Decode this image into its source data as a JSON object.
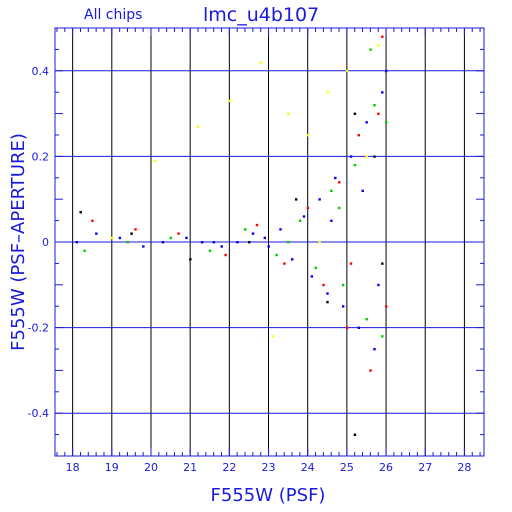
{
  "chart_data": {
    "type": "scatter",
    "title": "lmc_u4b107",
    "subtitle": "All chips",
    "xlabel": "F555W (PSF)",
    "ylabel": "F555W (PSF–APERTURE)",
    "xlim": [
      17.55,
      28.5
    ],
    "ylim": [
      -0.5,
      0.5
    ],
    "x_ticks": [
      18,
      19,
      20,
      21,
      22,
      23,
      24,
      25,
      26,
      27,
      28
    ],
    "x_tick_labels": [
      "18",
      "19",
      "20",
      "21",
      "22",
      "23",
      "24",
      "25",
      "26",
      "27",
      "28"
    ],
    "y_ticks": [
      -0.4,
      -0.2,
      0,
      0.2,
      0.4
    ],
    "y_tick_labels": [
      "-0.4",
      "-0.2",
      "0",
      "0.2",
      "0.4"
    ],
    "grid": true,
    "colors": {
      "axes": "#1a1adc",
      "frame": "#000000",
      "chip_series": [
        "#0000ff",
        "#00cc00",
        "#ff0000",
        "#ffff00",
        "#000000"
      ]
    },
    "series": [
      {
        "color": "#0000ff",
        "points": [
          [
            18.1,
            0.0
          ],
          [
            18.6,
            0.02
          ],
          [
            19.2,
            0.01
          ],
          [
            19.8,
            -0.01
          ],
          [
            20.3,
            0.0
          ],
          [
            20.9,
            0.01
          ],
          [
            21.3,
            0.0
          ],
          [
            21.8,
            -0.01
          ],
          [
            22.2,
            0.0
          ],
          [
            22.6,
            0.02
          ],
          [
            23.0,
            -0.01
          ],
          [
            23.3,
            0.03
          ],
          [
            23.6,
            -0.04
          ],
          [
            23.9,
            0.06
          ],
          [
            24.1,
            -0.08
          ],
          [
            24.3,
            0.1
          ],
          [
            24.5,
            -0.12
          ],
          [
            24.7,
            0.15
          ],
          [
            24.9,
            -0.15
          ],
          [
            25.1,
            0.2
          ],
          [
            25.3,
            -0.2
          ],
          [
            25.5,
            0.28
          ],
          [
            25.7,
            -0.25
          ],
          [
            25.9,
            0.35
          ],
          [
            26.0,
            0.4
          ],
          [
            25.8,
            -0.1
          ],
          [
            24.6,
            0.05
          ],
          [
            22.9,
            0.01
          ],
          [
            21.6,
            0.0
          ],
          [
            25.4,
            0.12
          ]
        ]
      },
      {
        "color": "#00cc00",
        "points": [
          [
            18.3,
            -0.02
          ],
          [
            19.4,
            0.0
          ],
          [
            20.5,
            0.01
          ],
          [
            21.5,
            -0.02
          ],
          [
            22.4,
            0.03
          ],
          [
            23.2,
            -0.03
          ],
          [
            23.8,
            0.05
          ],
          [
            24.2,
            -0.06
          ],
          [
            24.6,
            0.12
          ],
          [
            24.9,
            -0.1
          ],
          [
            25.2,
            0.18
          ],
          [
            25.5,
            -0.18
          ],
          [
            25.7,
            0.32
          ],
          [
            25.9,
            -0.22
          ],
          [
            26.0,
            0.28
          ],
          [
            25.6,
            0.45
          ],
          [
            24.8,
            0.08
          ],
          [
            23.5,
            0.0
          ]
        ]
      },
      {
        "color": "#ff0000",
        "points": [
          [
            18.5,
            0.05
          ],
          [
            19.6,
            0.03
          ],
          [
            20.7,
            0.02
          ],
          [
            21.9,
            -0.03
          ],
          [
            22.7,
            0.04
          ],
          [
            23.4,
            -0.05
          ],
          [
            24.0,
            0.08
          ],
          [
            24.4,
            -0.1
          ],
          [
            24.8,
            0.14
          ],
          [
            25.0,
            -0.2
          ],
          [
            25.3,
            0.25
          ],
          [
            25.6,
            -0.3
          ],
          [
            25.8,
            0.3
          ],
          [
            26.0,
            -0.15
          ],
          [
            25.9,
            0.48
          ],
          [
            25.1,
            -0.05
          ]
        ]
      },
      {
        "color": "#ffff00",
        "points": [
          [
            19.0,
            0.01
          ],
          [
            20.1,
            0.19
          ],
          [
            21.2,
            0.27
          ],
          [
            22.0,
            0.33
          ],
          [
            22.8,
            0.42
          ],
          [
            23.5,
            0.3
          ],
          [
            24.0,
            0.25
          ],
          [
            24.5,
            0.35
          ],
          [
            25.0,
            0.4
          ],
          [
            25.5,
            0.2
          ],
          [
            23.1,
            -0.22
          ],
          [
            24.3,
            0.0
          ],
          [
            25.8,
            0.46
          ]
        ]
      },
      {
        "color": "#000000",
        "points": [
          [
            18.2,
            0.07
          ],
          [
            19.5,
            0.02
          ],
          [
            21.0,
            -0.04
          ],
          [
            22.5,
            0.0
          ],
          [
            23.7,
            0.1
          ],
          [
            24.5,
            -0.14
          ],
          [
            25.2,
            0.3
          ],
          [
            25.7,
            0.2
          ],
          [
            25.2,
            -0.45
          ],
          [
            25.9,
            -0.05
          ]
        ]
      }
    ]
  }
}
